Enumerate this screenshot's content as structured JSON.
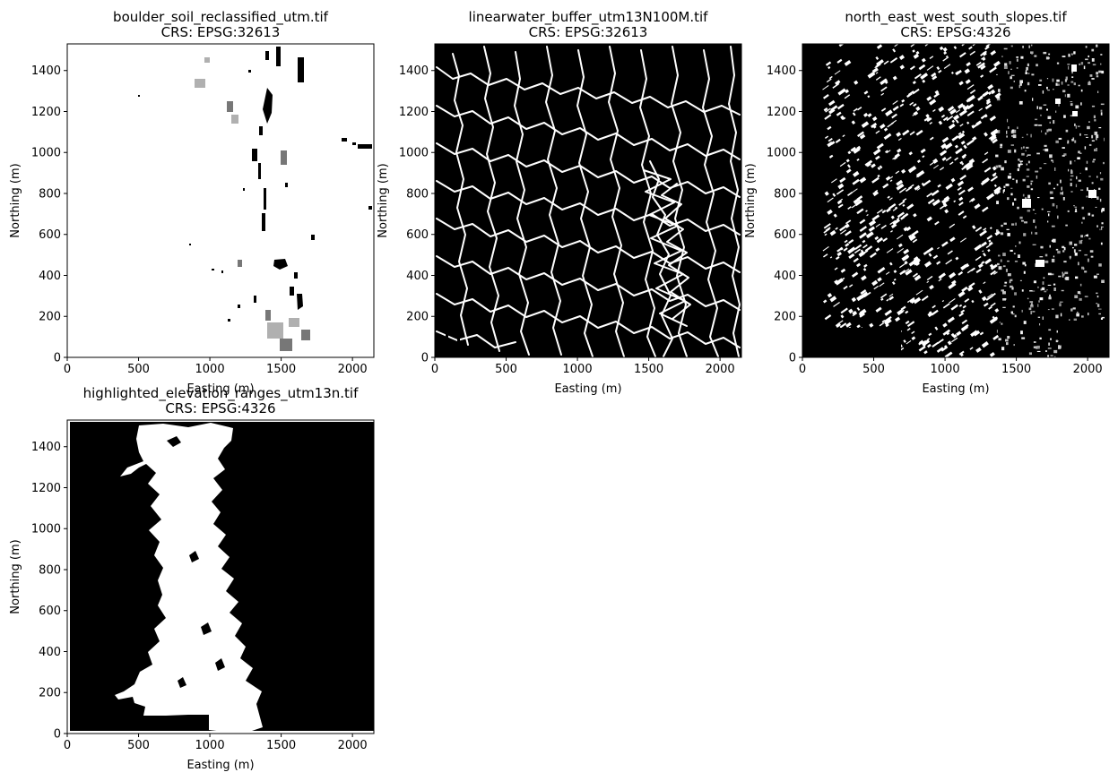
{
  "figure": {
    "background": "#ffffff"
  },
  "chart_data": [
    {
      "type": "heatmap",
      "title": "boulder_soil_reclassified_utm.tif",
      "subtitle": "CRS: EPSG:32613",
      "xlabel": "Easting (m)",
      "ylabel": "Northing (m)",
      "xlim": [
        0,
        2150
      ],
      "ylim": [
        0,
        1530
      ],
      "xticks": [
        0,
        500,
        1000,
        1500,
        2000
      ],
      "yticks": [
        0,
        200,
        400,
        600,
        800,
        1000,
        1200,
        1400
      ],
      "colormap": "grayscale",
      "background_value_color": "#ffffff",
      "feature_color": "#000000",
      "grid": false
    },
    {
      "type": "heatmap",
      "title": "linearwater_buffer_utm13N100M.tif",
      "subtitle": "CRS: EPSG:32613",
      "xlabel": "Easting (m)",
      "ylabel": "Northing (m)",
      "xlim": [
        0,
        2150
      ],
      "ylim": [
        0,
        1530
      ],
      "xticks": [
        0,
        500,
        1000,
        1500,
        2000
      ],
      "yticks": [
        0,
        200,
        400,
        600,
        800,
        1000,
        1200,
        1400
      ],
      "colormap": "grayscale",
      "background_value_color": "#000000",
      "feature_color": "#ffffff",
      "grid": false
    },
    {
      "type": "heatmap",
      "title": "north_east_west_south_slopes.tif",
      "subtitle": "CRS: EPSG:4326",
      "xlabel": "Easting (m)",
      "ylabel": "Northing (m)",
      "xlim": [
        0,
        2150
      ],
      "ylim": [
        0,
        1530
      ],
      "xticks": [
        0,
        500,
        1000,
        1500,
        2000
      ],
      "yticks": [
        0,
        200,
        400,
        600,
        800,
        1000,
        1200,
        1400
      ],
      "colormap": "grayscale",
      "background_value_color": "#000000",
      "feature_color": "#ffffff",
      "grid": false
    },
    {
      "type": "heatmap",
      "title": "highlighted_elevation_ranges_utm13n.tif",
      "subtitle": "CRS: EPSG:4326",
      "xlabel": "Easting (m)",
      "ylabel": "Northing (m)",
      "xlim": [
        0,
        2150
      ],
      "ylim": [
        0,
        1530
      ],
      "xticks": [
        0,
        500,
        1000,
        1500,
        2000
      ],
      "yticks": [
        0,
        200,
        400,
        600,
        800,
        1000,
        1200,
        1400
      ],
      "colormap": "grayscale",
      "background_value_color": "#000000",
      "feature_color": "#ffffff",
      "grid": false
    }
  ]
}
